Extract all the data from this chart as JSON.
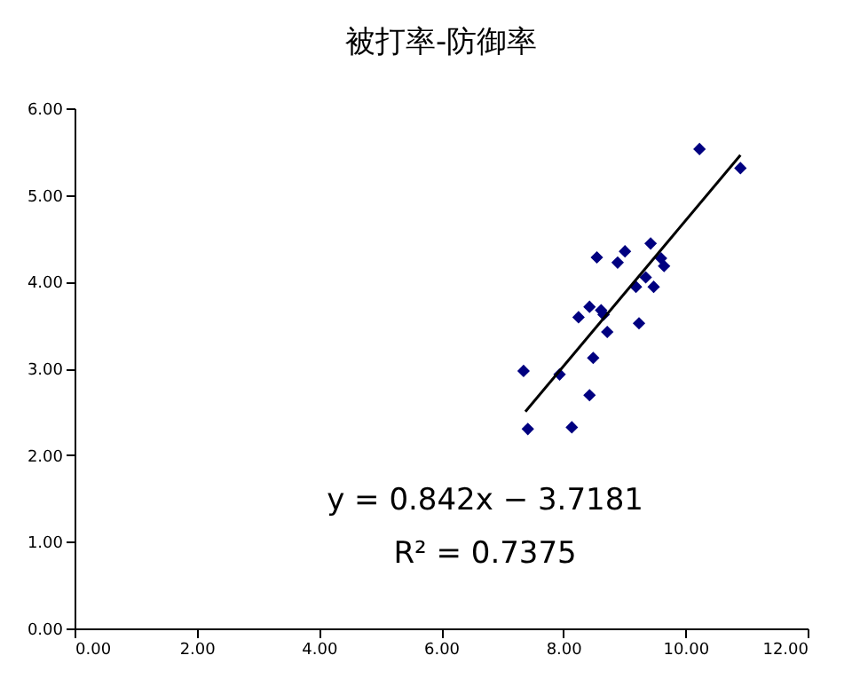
{
  "chart_data": {
    "type": "scatter",
    "title": "被打率-防御率",
    "series": [
      {
        "color": "#000080",
        "marker": "diamond",
        "x": [
          7.35,
          7.42,
          7.94,
          8.14,
          8.25,
          8.43,
          8.43,
          8.49,
          8.55,
          8.62,
          8.66,
          8.72,
          8.89,
          9.01,
          9.19,
          9.24,
          9.35,
          9.43,
          9.48,
          9.6,
          9.65,
          10.23,
          10.9
        ],
        "values": [
          2.97,
          2.3,
          2.93,
          2.32,
          3.59,
          3.71,
          2.69,
          3.12,
          4.28,
          3.67,
          3.62,
          3.42,
          4.22,
          4.35,
          3.94,
          3.52,
          4.05,
          4.44,
          3.94,
          4.27,
          4.18,
          5.53,
          5.31
        ]
      },
      {
        "type": "line",
        "color": "#000000",
        "marker": "none",
        "line_style": "solid",
        "x": [
          7.38,
          10.9
        ],
        "values": [
          2.5,
          5.46
        ]
      }
    ],
    "xlim": [
      0,
      12
    ],
    "ylim": [
      0,
      6
    ],
    "xticks": [
      {
        "value": 0,
        "label": "0.00"
      },
      {
        "value": 2,
        "label": "2.00"
      },
      {
        "value": 4,
        "label": "4.00"
      },
      {
        "value": 6,
        "label": "6.00"
      },
      {
        "value": 8,
        "label": "8.00"
      },
      {
        "value": 10,
        "label": "10.00"
      },
      {
        "value": 12,
        "label": "12.00"
      }
    ],
    "yticks": [
      {
        "value": 0,
        "label": "0.00"
      },
      {
        "value": 1,
        "label": "1.00"
      },
      {
        "value": 2,
        "label": "2.00"
      },
      {
        "value": 3,
        "label": "3.00"
      },
      {
        "value": 4,
        "label": "4.00"
      },
      {
        "value": 5,
        "label": "5.00"
      },
      {
        "value": 6,
        "label": "6.00"
      }
    ],
    "annotations": [
      "y = 0.842x − 3.7181",
      "R² = 0.7375"
    ],
    "grid": false
  }
}
